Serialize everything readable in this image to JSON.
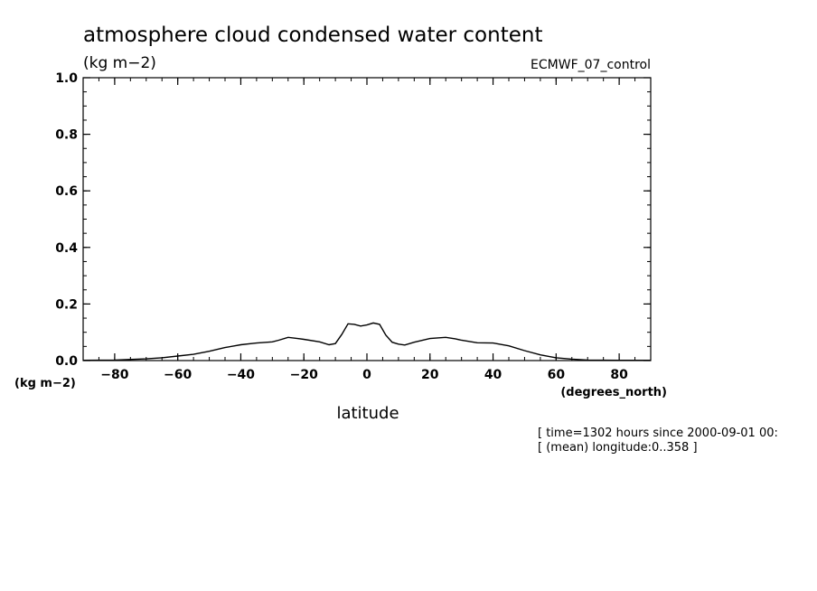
{
  "chart_data": {
    "type": "line",
    "title": "atmosphere cloud condensed water content",
    "subtitle": "(kg m−2)",
    "dataset_label": "ECMWF_07_control",
    "xlabel": "latitude",
    "x_unit_label": "(degrees_north)",
    "y_unit_label": "(kg m−2)",
    "xlim": [
      -90,
      90
    ],
    "ylim": [
      0,
      1
    ],
    "x_ticks": [
      -80,
      -60,
      -40,
      -20,
      0,
      20,
      40,
      60,
      80
    ],
    "x_tick_labels": [
      "−80",
      "−60",
      "−40",
      "−20",
      "0",
      "20",
      "40",
      "60",
      "80"
    ],
    "y_ticks": [
      0,
      0.2,
      0.4,
      0.6,
      0.8,
      1.0
    ],
    "y_tick_labels": [
      "0.0",
      "0.2",
      "0.4",
      "0.6",
      "0.8",
      "1.0"
    ],
    "grid": false,
    "legend": "none",
    "annotations": [
      "[ time=1302 hours since 2000-09-01 00:",
      "[ (mean) longitude:0..358 ]"
    ],
    "series": [
      {
        "color": "#000000",
        "x": [
          -90,
          -80,
          -70,
          -65,
          -60,
          -55,
          -50,
          -45,
          -40,
          -35,
          -30,
          -28,
          -25,
          -22,
          -20,
          -15,
          -12,
          -10,
          -8,
          -6,
          -4,
          -2,
          0,
          2,
          4,
          6,
          8,
          10,
          12,
          15,
          20,
          25,
          28,
          30,
          35,
          40,
          45,
          50,
          55,
          60,
          65,
          70,
          80,
          90
        ],
        "y": [
          0.001,
          0.002,
          0.006,
          0.01,
          0.016,
          0.022,
          0.033,
          0.046,
          0.056,
          0.062,
          0.066,
          0.072,
          0.082,
          0.078,
          0.075,
          0.066,
          0.056,
          0.06,
          0.092,
          0.13,
          0.128,
          0.122,
          0.126,
          0.133,
          0.128,
          0.09,
          0.065,
          0.058,
          0.055,
          0.065,
          0.078,
          0.082,
          0.077,
          0.072,
          0.063,
          0.062,
          0.052,
          0.035,
          0.02,
          0.01,
          0.005,
          0.002,
          0.001,
          0.001
        ]
      }
    ]
  }
}
